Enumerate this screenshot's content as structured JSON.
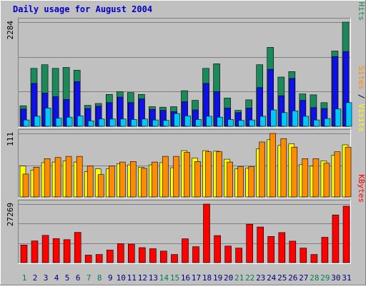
{
  "title": "Daily usage for August 2004",
  "chart_data": [
    {
      "type": "bar",
      "name": "hits_files_pages",
      "ymax_label": "2284",
      "ylim": [
        0,
        2284
      ],
      "categories": [
        "1",
        "2",
        "3",
        "4",
        "5",
        "6",
        "7",
        "8",
        "9",
        "10",
        "11",
        "12",
        "13",
        "14",
        "15",
        "16",
        "17",
        "18",
        "19",
        "20",
        "21",
        "22",
        "23",
        "24",
        "25",
        "26",
        "27",
        "28",
        "29",
        "30",
        "31"
      ],
      "series": [
        {
          "name": "Hits",
          "color": "#1b8a5a",
          "values": [
            450,
            1270,
            1350,
            1270,
            1290,
            1230,
            460,
            500,
            700,
            760,
            740,
            700,
            430,
            420,
            430,
            780,
            570,
            1270,
            1370,
            620,
            350,
            580,
            1350,
            1730,
            1080,
            1200,
            710,
            690,
            520,
            1650,
            2284
          ]
        },
        {
          "name": "Files",
          "color": "#1010e8",
          "values": [
            380,
            940,
            730,
            650,
            590,
            980,
            390,
            440,
            520,
            640,
            520,
            600,
            370,
            350,
            320,
            540,
            360,
            940,
            760,
            400,
            300,
            400,
            850,
            1250,
            670,
            1050,
            570,
            410,
            390,
            1530,
            1640
          ]
        },
        {
          "name": "Pages",
          "color": "#00c8f8",
          "values": [
            140,
            220,
            400,
            180,
            200,
            230,
            120,
            160,
            160,
            160,
            150,
            160,
            140,
            130,
            280,
            230,
            150,
            220,
            200,
            150,
            130,
            140,
            220,
            360,
            300,
            340,
            220,
            140,
            170,
            380,
            520
          ]
        }
      ]
    },
    {
      "type": "bar",
      "name": "sites_visits",
      "ymax_label": "111",
      "ylim": [
        0,
        111
      ],
      "categories": [
        "1",
        "2",
        "3",
        "4",
        "5",
        "6",
        "7",
        "8",
        "9",
        "10",
        "11",
        "12",
        "13",
        "14",
        "15",
        "16",
        "17",
        "18",
        "19",
        "20",
        "21",
        "22",
        "23",
        "24",
        "25",
        "26",
        "27",
        "28",
        "29",
        "30",
        "31"
      ],
      "series": [
        {
          "name": "Visits",
          "color": "#ffff00",
          "values": [
            54,
            47,
            60,
            61,
            63,
            61,
            44,
            49,
            49,
            58,
            56,
            52,
            56,
            60,
            51,
            81,
            68,
            81,
            80,
            66,
            49,
            50,
            84,
            100,
            90,
            93,
            57,
            54,
            63,
            73,
            91
          ]
        },
        {
          "name": "Sites",
          "color": "#ff8c00",
          "values": [
            40,
            52,
            67,
            69,
            71,
            71,
            54,
            39,
            54,
            61,
            62,
            50,
            61,
            71,
            71,
            78,
            62,
            79,
            79,
            61,
            53,
            53,
            96,
            111,
            102,
            87,
            67,
            67,
            59,
            79,
            87
          ]
        }
      ]
    },
    {
      "type": "bar",
      "name": "kbytes",
      "ymax_label": "27269",
      "ylim": [
        0,
        27269
      ],
      "categories": [
        "1",
        "2",
        "3",
        "4",
        "5",
        "6",
        "7",
        "8",
        "9",
        "10",
        "11",
        "12",
        "13",
        "14",
        "15",
        "16",
        "17",
        "18",
        "19",
        "20",
        "21",
        "22",
        "23",
        "24",
        "25",
        "26",
        "27",
        "28",
        "29",
        "30",
        "31"
      ],
      "series": [
        {
          "name": "KBytes",
          "color": "#ff0000",
          "values": [
            8200,
            10100,
            12700,
            11200,
            10700,
            14100,
            3500,
            3800,
            5900,
            8800,
            8600,
            7000,
            6500,
            5400,
            3800,
            11100,
            7400,
            27269,
            12600,
            7700,
            6800,
            17900,
            16600,
            12200,
            14000,
            10000,
            6800,
            3800,
            11800,
            22200,
            26300
          ]
        }
      ]
    }
  ],
  "legend": {
    "top": [
      {
        "label": "Pages",
        "color": "#00c8f8"
      },
      {
        "label": "Files",
        "color": "#1010e8"
      },
      {
        "label": "Hits",
        "color": "#1b8a5a"
      }
    ],
    "middle": [
      {
        "label": "Sites",
        "color": "#ff8c00"
      },
      {
        "label": "Visits",
        "color": "#ffff00"
      }
    ],
    "bottom": [
      {
        "label": "KBytes",
        "color": "#ff0000"
      }
    ]
  },
  "day_colors": {
    "weekday": "#000080",
    "weekend": "#00805a"
  },
  "weekend_days": [
    "1",
    "7",
    "8",
    "14",
    "15",
    "21",
    "22",
    "28",
    "29"
  ]
}
